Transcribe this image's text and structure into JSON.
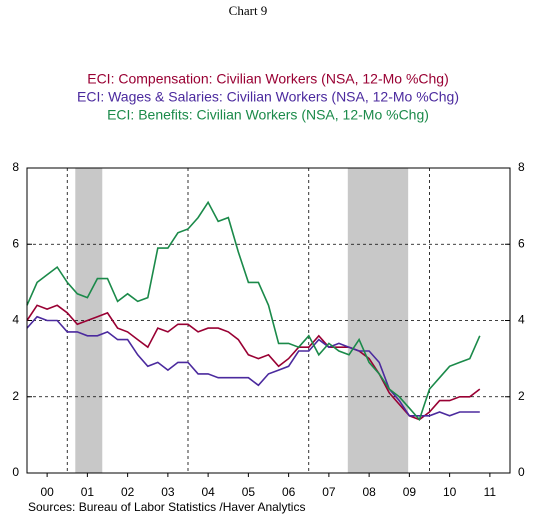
{
  "chart_data": {
    "type": "line",
    "title": "Chart 9",
    "subtitles": [
      "ECI: Compensation: Civilian Workers (NSA, 12-Mo %Chg)",
      "ECI: Wages & Salaries: Civilian Workers (NSA, 12-Mo %Chg)",
      "ECI: Benefits: Civilian Workers (NSA, 12-Mo %Chg)"
    ],
    "source": "Sources:  Bureau of Labor Statistics /Haver Analytics",
    "x": [
      2000,
      2000.25,
      2000.5,
      2000.75,
      2001,
      2001.25,
      2001.5,
      2001.75,
      2002,
      2002.25,
      2002.5,
      2002.75,
      2003,
      2003.25,
      2003.5,
      2003.75,
      2004,
      2004.25,
      2004.5,
      2004.75,
      2005,
      2005.25,
      2005.5,
      2005.75,
      2006,
      2006.25,
      2006.5,
      2006.75,
      2007,
      2007.25,
      2007.5,
      2007.75,
      2008,
      2008.25,
      2008.5,
      2008.75,
      2009,
      2009.25,
      2009.5,
      2009.75,
      2010,
      2010.25,
      2010.5,
      2010.75,
      2011,
      2011.25
    ],
    "series": [
      {
        "name": "ECI: Compensation: Civilian Workers (NSA, 12-Mo %Chg)",
        "color": "#990033",
        "values": [
          4.0,
          4.4,
          4.3,
          4.4,
          4.2,
          3.9,
          4.0,
          4.1,
          4.2,
          3.8,
          3.7,
          3.5,
          3.3,
          3.8,
          3.7,
          3.9,
          3.9,
          3.7,
          3.8,
          3.8,
          3.7,
          3.5,
          3.1,
          3.0,
          3.1,
          2.8,
          3.0,
          3.3,
          3.3,
          3.6,
          3.3,
          3.3,
          3.3,
          3.2,
          3.0,
          2.6,
          2.1,
          1.8,
          1.5,
          1.4,
          1.6,
          1.9,
          1.9,
          2.0,
          2.0,
          2.2
        ]
      },
      {
        "name": "ECI: Wages & Salaries: Civilian Workers (NSA, 12-Mo %Chg)",
        "color": "#4b2a9e",
        "values": [
          3.8,
          4.1,
          4.0,
          4.0,
          3.7,
          3.7,
          3.6,
          3.6,
          3.7,
          3.5,
          3.5,
          3.1,
          2.8,
          2.9,
          2.7,
          2.9,
          2.9,
          2.6,
          2.6,
          2.5,
          2.5,
          2.5,
          2.5,
          2.3,
          2.6,
          2.7,
          2.8,
          3.2,
          3.2,
          3.5,
          3.3,
          3.4,
          3.3,
          3.2,
          3.2,
          2.9,
          2.2,
          1.9,
          1.5,
          1.5,
          1.5,
          1.6,
          1.5,
          1.6,
          1.6,
          1.6
        ]
      },
      {
        "name": "ECI: Benefits: Civilian Workers (NSA, 12-Mo %Chg)",
        "color": "#1b8a4a",
        "values": [
          4.4,
          5.0,
          5.2,
          5.4,
          5.0,
          4.7,
          4.6,
          5.1,
          5.1,
          4.5,
          4.7,
          4.5,
          4.6,
          5.9,
          5.9,
          6.3,
          6.4,
          6.7,
          7.1,
          6.6,
          6.7,
          5.8,
          5.0,
          5.0,
          4.4,
          3.4,
          3.4,
          3.3,
          3.6,
          3.1,
          3.4,
          3.2,
          3.1,
          3.5,
          2.9,
          2.6,
          2.2,
          2.0,
          1.7,
          1.4,
          2.2,
          2.5,
          2.8,
          2.9,
          3.0,
          3.6
        ]
      }
    ],
    "xlim": [
      2000,
      2012
    ],
    "xticks": [
      {
        "value": 2000.5,
        "label": "00"
      },
      {
        "value": 2001.5,
        "label": "01"
      },
      {
        "value": 2002.5,
        "label": "02"
      },
      {
        "value": 2003.5,
        "label": "03"
      },
      {
        "value": 2004.5,
        "label": "04"
      },
      {
        "value": 2005.5,
        "label": "05"
      },
      {
        "value": 2006.5,
        "label": "06"
      },
      {
        "value": 2007.5,
        "label": "07"
      },
      {
        "value": 2008.5,
        "label": "08"
      },
      {
        "value": 2009.5,
        "label": "09"
      },
      {
        "value": 2010.5,
        "label": "10"
      },
      {
        "value": 2011.5,
        "label": "11"
      }
    ],
    "xgrid": [
      2001,
      2004,
      2007,
      2010
    ],
    "recessions": [
      [
        2001.2,
        2001.87
      ],
      [
        2007.97,
        2009.47
      ]
    ],
    "ylim": [
      0,
      8
    ],
    "yticks": [
      0,
      2,
      4,
      6,
      8
    ],
    "y2lim": [
      0,
      8
    ],
    "y2ticks": [
      0,
      2,
      4,
      6,
      8
    ],
    "grid": true
  }
}
